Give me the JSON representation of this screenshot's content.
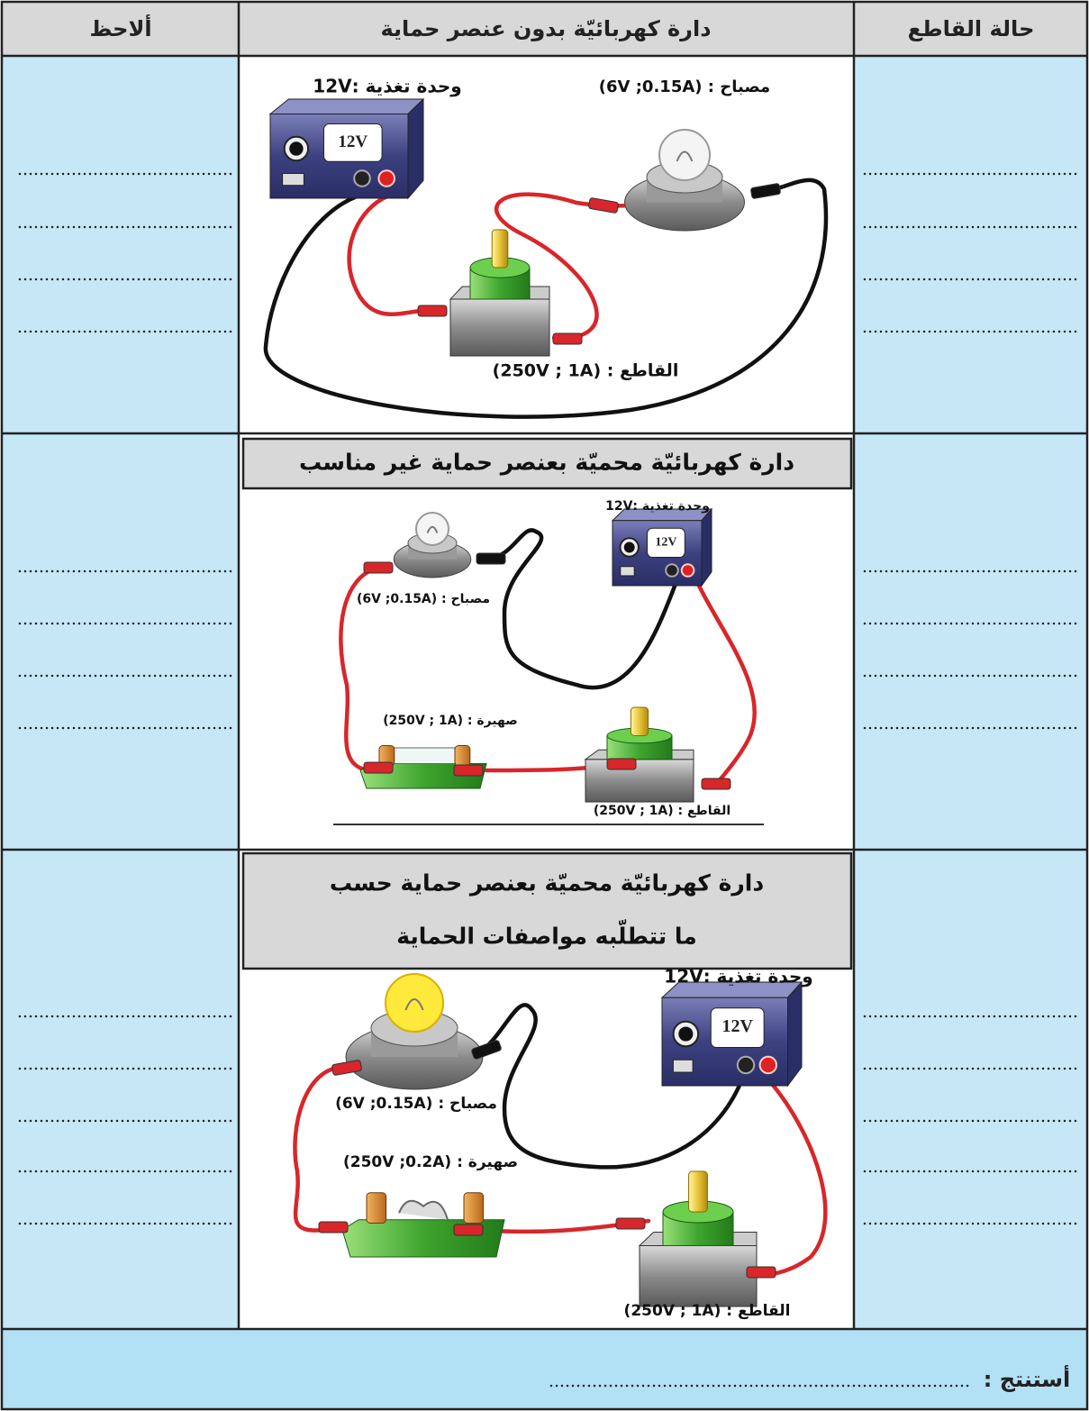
{
  "header": {
    "status": "حالة القاطع",
    "circuit": "دارة كهربائيّة بدون عنصر حماية",
    "observe": "ألاحظ"
  },
  "rows": [
    {
      "supply": "وحدة تغذية :12V",
      "display": "12V",
      "lamp": "مصباح : (6V ;0.15A)",
      "switch": "القاطع : (250V ; 1A)"
    },
    {
      "heading": [
        "دارة كهربائيّة محميّة بعنصر حماية غير مناسب"
      ],
      "supply": "وحدة تغذية :12V",
      "display": "12V",
      "lamp": "مصباح : (6V ;0.15A)",
      "fuse": "صهيرة : (250V ; 1A)",
      "switch": "القاطع : (250V ; 1A)"
    },
    {
      "heading": [
        "دارة كهربائيّة محميّة بعنصر حماية حسب",
        "ما تتطلّبه مواصفات الحماية"
      ],
      "supply": "وحدة تغذية :12V",
      "display": "12V",
      "lamp": "مصباح : (6V ;0.15A)",
      "fuse": "صهيرة : (250V ;0.2A)",
      "switch": "القاطع : (250V ; 1A)"
    }
  ],
  "conclusion": "أستنتج :"
}
